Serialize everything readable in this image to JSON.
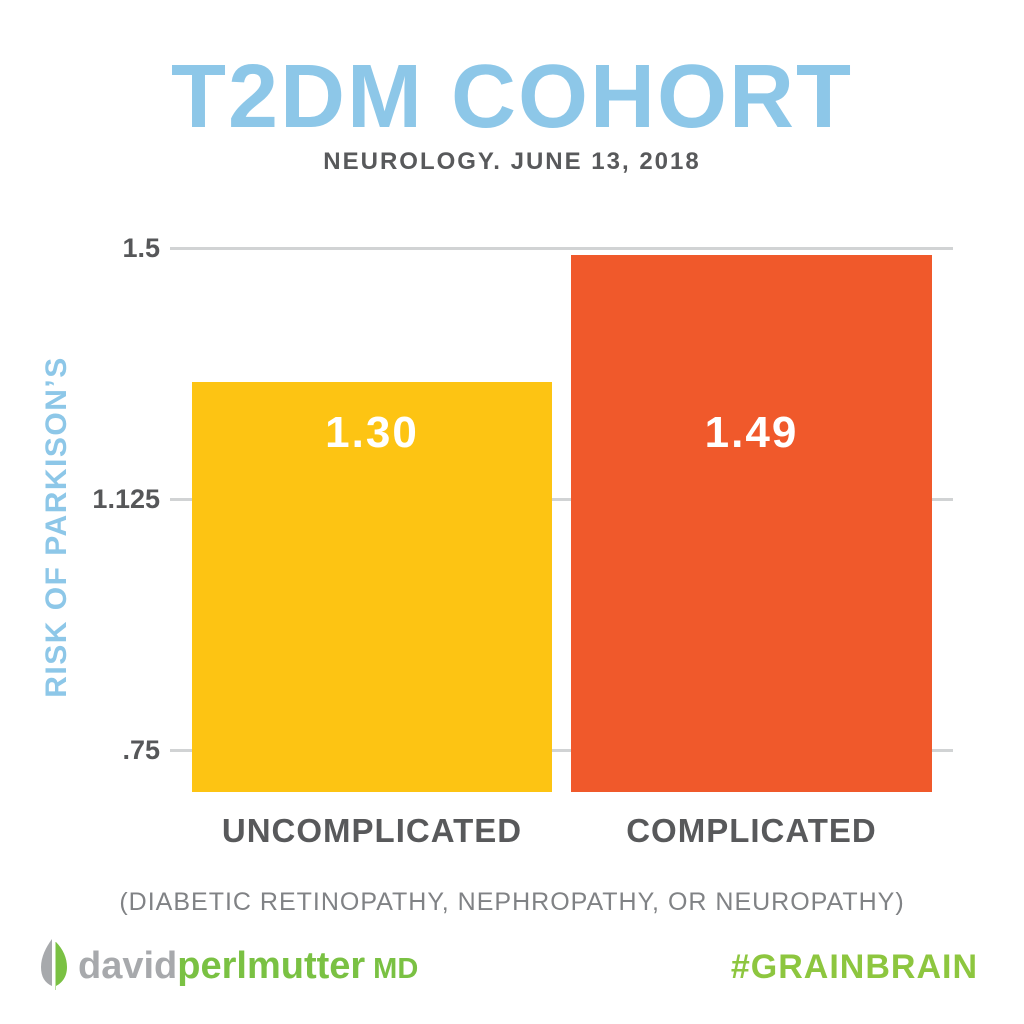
{
  "chart_data": {
    "type": "bar",
    "title": "T2DM COHORT",
    "subtitle": "NEUROLOGY. JUNE 13, 2018",
    "ylabel": "RISK OF PARKISON’S",
    "categories": [
      "UNCOMPLICATED",
      "COMPLICATED"
    ],
    "values": [
      1.3,
      1.49
    ],
    "value_labels": [
      "1.30",
      "1.49"
    ],
    "bar_colors": [
      "#FDC413",
      "#F0592B"
    ],
    "yticks": [
      {
        "label": "1.5",
        "value": 1.5
      },
      {
        "label": "1.125",
        "value": 1.125
      },
      {
        "label": ".75",
        "value": 0.75
      }
    ],
    "ylim": [
      0.687,
      1.5
    ],
    "grid": "horizontal-light-gray",
    "legend": "none",
    "note": "(DIABETIC RETINOPATHY, NEPHROPATHY, OR NEUROPATHY)"
  },
  "footer": {
    "brand": {
      "first": "david",
      "last": "perlmutter",
      "suffix": "MD"
    },
    "hashtag": "#GRAINBRAIN",
    "leaf_icon": "leaf-icon"
  },
  "colors": {
    "title_blue": "#8DC7E8",
    "text_dark_gray": "#58595B",
    "note_gray": "#808285",
    "grid_gray": "#D1D3D4",
    "brand_gray": "#A7A9AC",
    "brand_green": "#7AC143",
    "hashtag_green": "#8DC63F",
    "bar_yellow": "#FDC413",
    "bar_orange": "#F0592B",
    "value_text": "#FFFFFF"
  }
}
